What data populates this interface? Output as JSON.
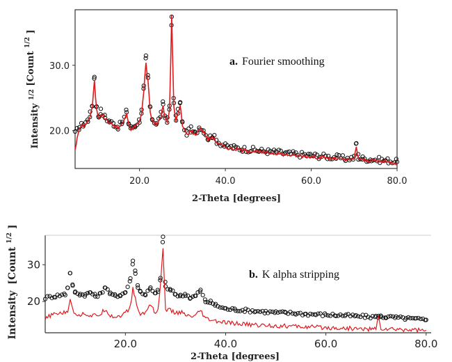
{
  "colors": {
    "raw_points": "#111111",
    "processed_line": "#e0191c",
    "axis": "#333333",
    "background": "#ffffff"
  },
  "chart_data": [
    {
      "type": "line",
      "panel": "a",
      "annotation_letter": "a.",
      "annotation_text": "Fourier smoothing",
      "xlabel": "2-Theta [degrees]",
      "ylabel_main": "Intensity",
      "ylabel_sup": "1/2",
      "ylabel_unit": "[Count",
      "ylabel_unit_sup": "1/2",
      "ylabel_unit_close": "]",
      "xlim": [
        5,
        80
      ],
      "ylim": [
        14.2,
        38.5
      ],
      "xticks": [
        {
          "value": 20,
          "label": "20.0"
        },
        {
          "value": 40,
          "label": "40.0"
        },
        {
          "value": 60,
          "label": "60.0"
        },
        {
          "value": 80,
          "label": "80.0"
        }
      ],
      "yticks": [
        {
          "value": 20,
          "label": "20.0"
        },
        {
          "value": 30,
          "label": "30.0"
        }
      ],
      "grid": false,
      "series": [
        {
          "role": "raw-points",
          "marker": "open-circle",
          "x": [
            5,
            6,
            7,
            8,
            8.5,
            9,
            9.5,
            10,
            10.5,
            11,
            12,
            13,
            14,
            15,
            16,
            17,
            17.5,
            18,
            19,
            20,
            20.5,
            21,
            21.5,
            22,
            22.5,
            23,
            24,
            25,
            25.5,
            26,
            26.5,
            27,
            27.5,
            28,
            28.5,
            29,
            29.5,
            30,
            31,
            32,
            33,
            34,
            35,
            36,
            37,
            38,
            40,
            42,
            44,
            46,
            48,
            50,
            52,
            54,
            56,
            58,
            60,
            62,
            64,
            66,
            68,
            70,
            70.5,
            71,
            72,
            74,
            76,
            78,
            80
          ],
          "y": [
            19.5,
            20.6,
            21,
            21.6,
            22.5,
            24,
            28.4,
            23.5,
            22.2,
            23,
            22,
            21.4,
            21,
            20.6,
            21.2,
            23,
            21,
            20.4,
            20.8,
            21.6,
            23,
            26.5,
            31.2,
            28,
            23.2,
            21.8,
            21,
            22.5,
            24.2,
            22,
            21.6,
            23.5,
            37.5,
            24,
            21.8,
            23,
            24.2,
            21,
            19.6,
            20.2,
            19.5,
            20.6,
            20,
            18.8,
            19.3,
            18.4,
            17.6,
            17.4,
            17.2,
            17.1,
            16.9,
            16.8,
            16.7,
            16.5,
            16.4,
            16.3,
            16.2,
            16.1,
            16,
            15.9,
            15.7,
            15.8,
            18.2,
            15.9,
            15.7,
            15.6,
            15.5,
            15.4,
            15.2
          ]
        },
        {
          "role": "smoothed-line",
          "x": [
            5,
            6,
            7,
            8,
            8.5,
            9,
            9.5,
            10,
            10.5,
            11,
            12,
            13,
            14,
            15,
            16,
            17,
            17.5,
            18,
            19,
            20,
            20.5,
            21,
            21.5,
            22,
            22.5,
            23,
            24,
            25,
            25.5,
            26,
            26.5,
            27,
            27.5,
            28,
            28.5,
            29,
            29.5,
            30,
            31,
            32,
            33,
            34,
            35,
            36,
            37,
            38,
            40,
            42,
            44,
            46,
            48,
            50,
            52,
            54,
            56,
            58,
            60,
            62,
            64,
            66,
            68,
            70,
            70.5,
            71,
            72,
            74,
            76,
            78,
            80
          ],
          "y": [
            17.2,
            20.4,
            20.8,
            21.4,
            22.2,
            23.6,
            27.5,
            23.2,
            22,
            22.6,
            21.8,
            21.2,
            20.8,
            20.4,
            21,
            22.6,
            20.8,
            20.2,
            20.6,
            21.4,
            22.6,
            26,
            30.5,
            27.5,
            22.8,
            21.6,
            20.8,
            22.2,
            23.8,
            21.8,
            21.4,
            23,
            37.5,
            23.6,
            21.6,
            22.6,
            23.8,
            20.8,
            19.4,
            20,
            19.3,
            20.4,
            19.8,
            18.6,
            19.1,
            18.2,
            17.4,
            17.2,
            17,
            16.9,
            16.7,
            16.6,
            16.5,
            16.3,
            16.2,
            16.1,
            16,
            15.9,
            15.8,
            15.7,
            15.5,
            15.6,
            17.6,
            15.7,
            15.5,
            15.4,
            15.3,
            15.2,
            15
          ]
        }
      ]
    },
    {
      "type": "line",
      "panel": "b",
      "annotation_letter": "b.",
      "annotation_text": "K alpha stripping",
      "xlabel": "2-Theta [degrees]",
      "ylabel_main": "Intensity",
      "ylabel_unit": "[Count",
      "ylabel_unit_sup": "1/2",
      "ylabel_unit_close": "]",
      "xlim": [
        4,
        81
      ],
      "ylim": [
        11.5,
        38
      ],
      "xticks": [
        {
          "value": 20,
          "label": "20.0"
        },
        {
          "value": 40,
          "label": "40.0"
        },
        {
          "value": 60,
          "label": "60.0"
        },
        {
          "value": 80,
          "label": "80.0"
        }
      ],
      "yticks": [
        {
          "value": 20,
          "label": "20"
        },
        {
          "value": 30,
          "label": "30"
        }
      ],
      "grid": false,
      "series": [
        {
          "role": "raw-points",
          "marker": "open-circle",
          "x": [
            4,
            6,
            8,
            8.5,
            9,
            9.5,
            10,
            11,
            12,
            13,
            14,
            15,
            16,
            17,
            18,
            19,
            20,
            21,
            21.5,
            22,
            22.5,
            23,
            24,
            25,
            26,
            26.5,
            27,
            27.5,
            28,
            29,
            30,
            31,
            32,
            33,
            34,
            35,
            36,
            37,
            38,
            40,
            42,
            44,
            46,
            48,
            50,
            52,
            54,
            56,
            58,
            60,
            62,
            64,
            66,
            68,
            70,
            70.5,
            71,
            72,
            74,
            76,
            78,
            80
          ],
          "y": [
            21,
            21.5,
            22,
            24,
            28,
            24,
            22.5,
            22,
            21.8,
            22.5,
            21.5,
            22,
            24,
            22,
            21.6,
            21.8,
            22.5,
            26,
            31,
            28,
            24,
            22.6,
            22,
            23.5,
            22,
            23,
            26,
            37.5,
            24,
            23,
            22,
            21.5,
            22,
            21,
            21.5,
            23,
            20,
            19.8,
            19,
            18,
            17.8,
            17.6,
            17.4,
            17.2,
            17,
            16.9,
            16.8,
            16.6,
            16.5,
            16.4,
            16.3,
            16.2,
            16,
            15.9,
            15.8,
            16,
            15.9,
            15.8,
            15.6,
            15.4,
            15.2,
            15
          ]
        },
        {
          "role": "stripped-line",
          "x": [
            4,
            5,
            6,
            7,
            8,
            8.5,
            9,
            9.5,
            10,
            11,
            12,
            13,
            14,
            15,
            16,
            17,
            18,
            19,
            20,
            21,
            21.5,
            22,
            22.5,
            23,
            24,
            25,
            26,
            26.5,
            27,
            27.5,
            28,
            29,
            30,
            31,
            32,
            33,
            34,
            35,
            36,
            37,
            38,
            40,
            42,
            44,
            46,
            48,
            50,
            52,
            54,
            56,
            58,
            60,
            62,
            64,
            66,
            68,
            70,
            70.5,
            71,
            72,
            74,
            76,
            78,
            80
          ],
          "y": [
            15,
            16.2,
            16.5,
            17,
            16.8,
            17.5,
            21,
            17.5,
            16.8,
            16.4,
            16.8,
            16,
            16.2,
            16.5,
            18,
            16.2,
            15.8,
            16.2,
            16.8,
            18.5,
            23.5,
            21,
            17.5,
            16.5,
            17,
            19.5,
            16.8,
            17.5,
            25,
            34,
            18,
            17.5,
            16.8,
            17.2,
            16.2,
            15.8,
            16,
            17.5,
            15.2,
            15,
            14.6,
            14.2,
            14,
            13.8,
            13.6,
            13.5,
            13.4,
            13.3,
            13.2,
            13.1,
            13,
            12.9,
            12.8,
            12.7,
            12.6,
            12.5,
            12.5,
            15.8,
            12.6,
            12.5,
            12.4,
            12.4,
            12.3,
            12.2
          ]
        }
      ]
    }
  ]
}
